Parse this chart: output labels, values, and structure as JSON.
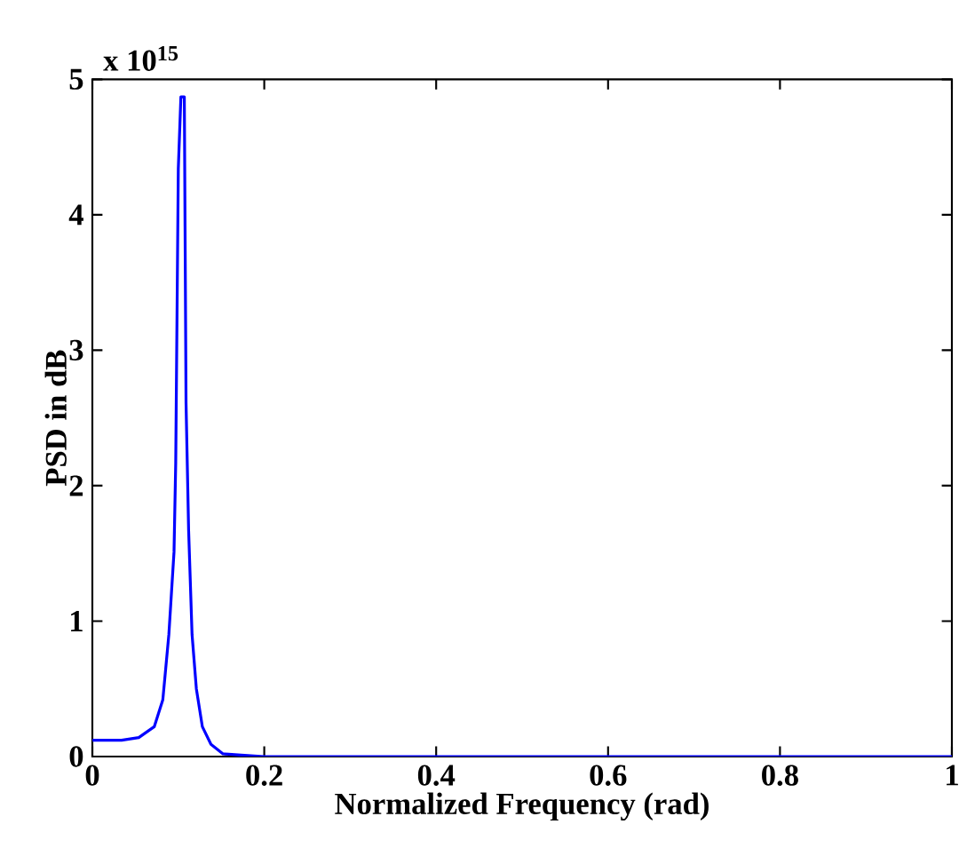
{
  "chart_data": {
    "type": "line",
    "xlabel": "Normalized Frequency (rad)",
    "ylabel": "PSD in dB",
    "annotations": [
      "x 10$^{15}$"
    ],
    "series": [
      {
        "color": "#0000ff",
        "x": [
          0,
          0.034,
          0.054,
          0.072,
          0.082,
          0.089,
          0.095,
          0.097,
          0.1,
          0.103,
          0.107,
          0.109,
          0.112,
          0.116,
          0.121,
          0.128,
          0.138,
          0.152,
          0.173,
          0.2,
          0.4,
          0.6,
          0.8,
          1
        ],
        "values": [
          0.12,
          0.12,
          0.14,
          0.22,
          0.42,
          0.9,
          1.51,
          2.17,
          4.34,
          4.87,
          4.87,
          2.61,
          1.67,
          0.9,
          0.5,
          0.22,
          0.09,
          0.02,
          0.01,
          0,
          0,
          0,
          0,
          0
        ]
      }
    ],
    "xlim": [
      0,
      1
    ],
    "ylim": [
      0,
      5
    ],
    "xticks": [
      0,
      0.2,
      0.4,
      0.6,
      0.8,
      1
    ],
    "yticks": [
      0,
      1,
      2,
      3,
      4,
      5
    ],
    "grid": false,
    "marker": "none",
    "line_style": "solid"
  }
}
